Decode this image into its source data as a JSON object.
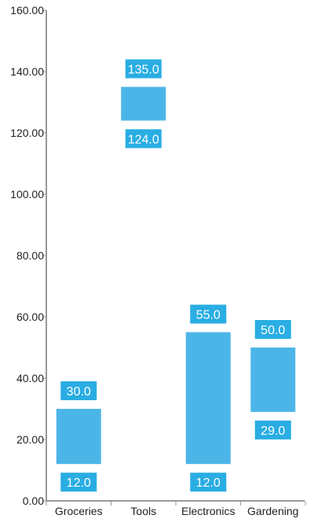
{
  "chart_data": {
    "type": "bar",
    "subtype": "range",
    "title": "",
    "xlabel": "",
    "ylabel": "",
    "ylim": [
      0,
      160
    ],
    "yticks": [
      0,
      20,
      40,
      60,
      80,
      100,
      120,
      140,
      160
    ],
    "ytick_labels": [
      "0.00",
      "20.00",
      "40.00",
      "60.00",
      "80.00",
      "100.00",
      "120.00",
      "140.00",
      "160.00"
    ],
    "categories": [
      "Groceries",
      "Tools",
      "Electronics",
      "Gardening"
    ],
    "low": [
      12,
      124,
      12,
      29
    ],
    "high": [
      30,
      135,
      55,
      50
    ],
    "low_labels": [
      "12.0",
      "124.0",
      "12.0",
      "29.0"
    ],
    "high_labels": [
      "30.0",
      "135.0",
      "55.0",
      "50.0"
    ],
    "grid": false,
    "legend": "none",
    "colors": {
      "bar": "#4cb5e8",
      "label_box": "#29ade3",
      "label_text": "#ffffff",
      "axis": "#999999",
      "text": "#222222"
    }
  }
}
